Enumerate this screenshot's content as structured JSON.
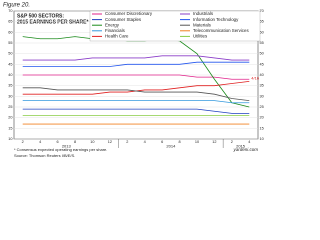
{
  "figure_label": "Figure 20.",
  "chart_data": {
    "type": "line",
    "title": "S&P 500 SECTORS:",
    "subtitle": "2015 EARNINGS PER SHARE*",
    "categories": [
      "2",
      "4",
      "6",
      "8",
      "10",
      "12",
      "2",
      "4",
      "6",
      "8",
      "10",
      "12",
      "2",
      "4"
    ],
    "years": [
      "2013",
      "2014",
      "2015"
    ],
    "year_spans": [
      6,
      6,
      2
    ],
    "ylim": [
      10,
      70
    ],
    "yticks": [
      10,
      15,
      20,
      25,
      30,
      35,
      40,
      45,
      50,
      55,
      60,
      65,
      70
    ],
    "grid": true,
    "annotation": "4/16",
    "series": [
      {
        "name": "Consumer Discretionary",
        "color": "#e0218a",
        "values": [
          40,
          40,
          40,
          40,
          40,
          40,
          40,
          40,
          40,
          40,
          39,
          39,
          38,
          38
        ]
      },
      {
        "name": "Consumer Staples",
        "color": "#1f3fbf",
        "values": [
          24,
          24,
          24,
          24,
          24,
          24,
          24,
          24,
          24,
          24,
          24,
          23,
          22,
          22
        ]
      },
      {
        "name": "Energy",
        "color": "#1a8a1a",
        "values": [
          58,
          57,
          57,
          58,
          57,
          57,
          56,
          56,
          57,
          56,
          50,
          38,
          27,
          25
        ]
      },
      {
        "name": "Financials",
        "color": "#3399dd",
        "values": [
          28,
          28,
          28,
          28,
          28,
          28,
          28,
          28,
          28,
          28,
          28,
          28,
          27,
          27
        ]
      },
      {
        "name": "Health Care",
        "color": "#e02020",
        "values": [
          31,
          31,
          31,
          31,
          31,
          32,
          32,
          33,
          33,
          34,
          35,
          35,
          36,
          37
        ]
      },
      {
        "name": "Industrials",
        "color": "#8a3cc8",
        "values": [
          47,
          47,
          47,
          47,
          48,
          48,
          48,
          48,
          49,
          49,
          49,
          48,
          47,
          47
        ]
      },
      {
        "name": "Information Technology",
        "color": "#2255ee",
        "values": [
          44,
          44,
          44,
          44,
          44,
          44,
          45,
          45,
          45,
          45,
          46,
          46,
          46,
          46
        ]
      },
      {
        "name": "Materials",
        "color": "#555555",
        "values": [
          34,
          34,
          33,
          33,
          33,
          33,
          33,
          32,
          32,
          32,
          32,
          31,
          29,
          28
        ]
      },
      {
        "name": "Telecommunication Services",
        "color": "#f08020",
        "values": [
          17,
          17,
          17,
          17,
          17,
          17,
          17,
          17,
          17,
          17,
          17,
          17,
          17,
          17
        ]
      },
      {
        "name": "Utilities",
        "color": "#88cc44",
        "values": [
          21,
          21,
          21,
          21,
          21,
          21,
          21,
          21,
          21,
          21,
          21,
          21,
          21,
          21
        ]
      }
    ],
    "footnote": "* Consensus expected operating earnings per share.",
    "source": "Source: Thomson Reuters I/B/E/S.",
    "credit": "yardeni.com"
  }
}
